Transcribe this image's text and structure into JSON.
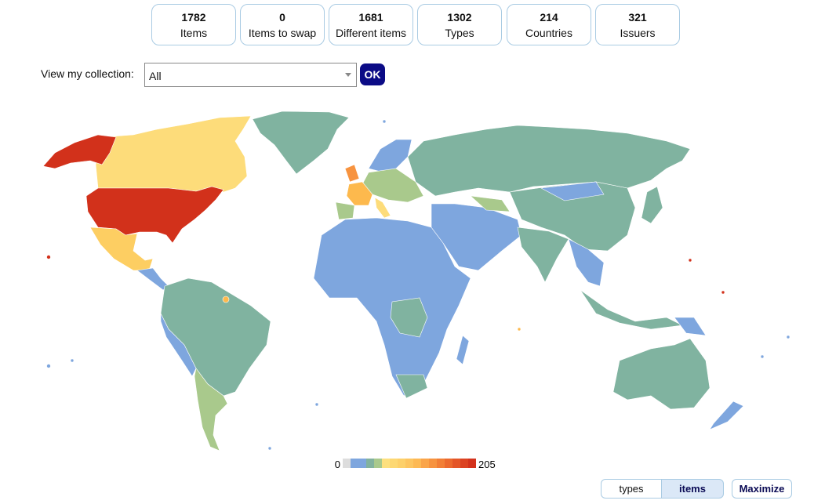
{
  "stats": [
    {
      "value": 1782,
      "label": "Items"
    },
    {
      "value": 0,
      "label": "Items to swap"
    },
    {
      "value": 1681,
      "label": "Different items"
    },
    {
      "value": 1302,
      "label": "Types"
    },
    {
      "value": 214,
      "label": "Countries"
    },
    {
      "value": 321,
      "label": "Issuers"
    }
  ],
  "filter": {
    "label": "View my collection:",
    "selected": "All",
    "button": "OK"
  },
  "legend": {
    "min": 0,
    "max": 205,
    "colors": [
      "#dddddd",
      "#7ea6de",
      "#7ea6de",
      "#82b29e",
      "#a9c98c",
      "#fde07f",
      "#fdd873",
      "#fdd06a",
      "#fdc560",
      "#fdb954",
      "#faa54a",
      "#f7933f",
      "#f27f36",
      "#ec6a2e",
      "#e45628",
      "#dc4322",
      "#d3321c"
    ]
  },
  "toggle": {
    "options": [
      "types",
      "items"
    ],
    "active": 1
  },
  "maximize": "Maximize"
}
